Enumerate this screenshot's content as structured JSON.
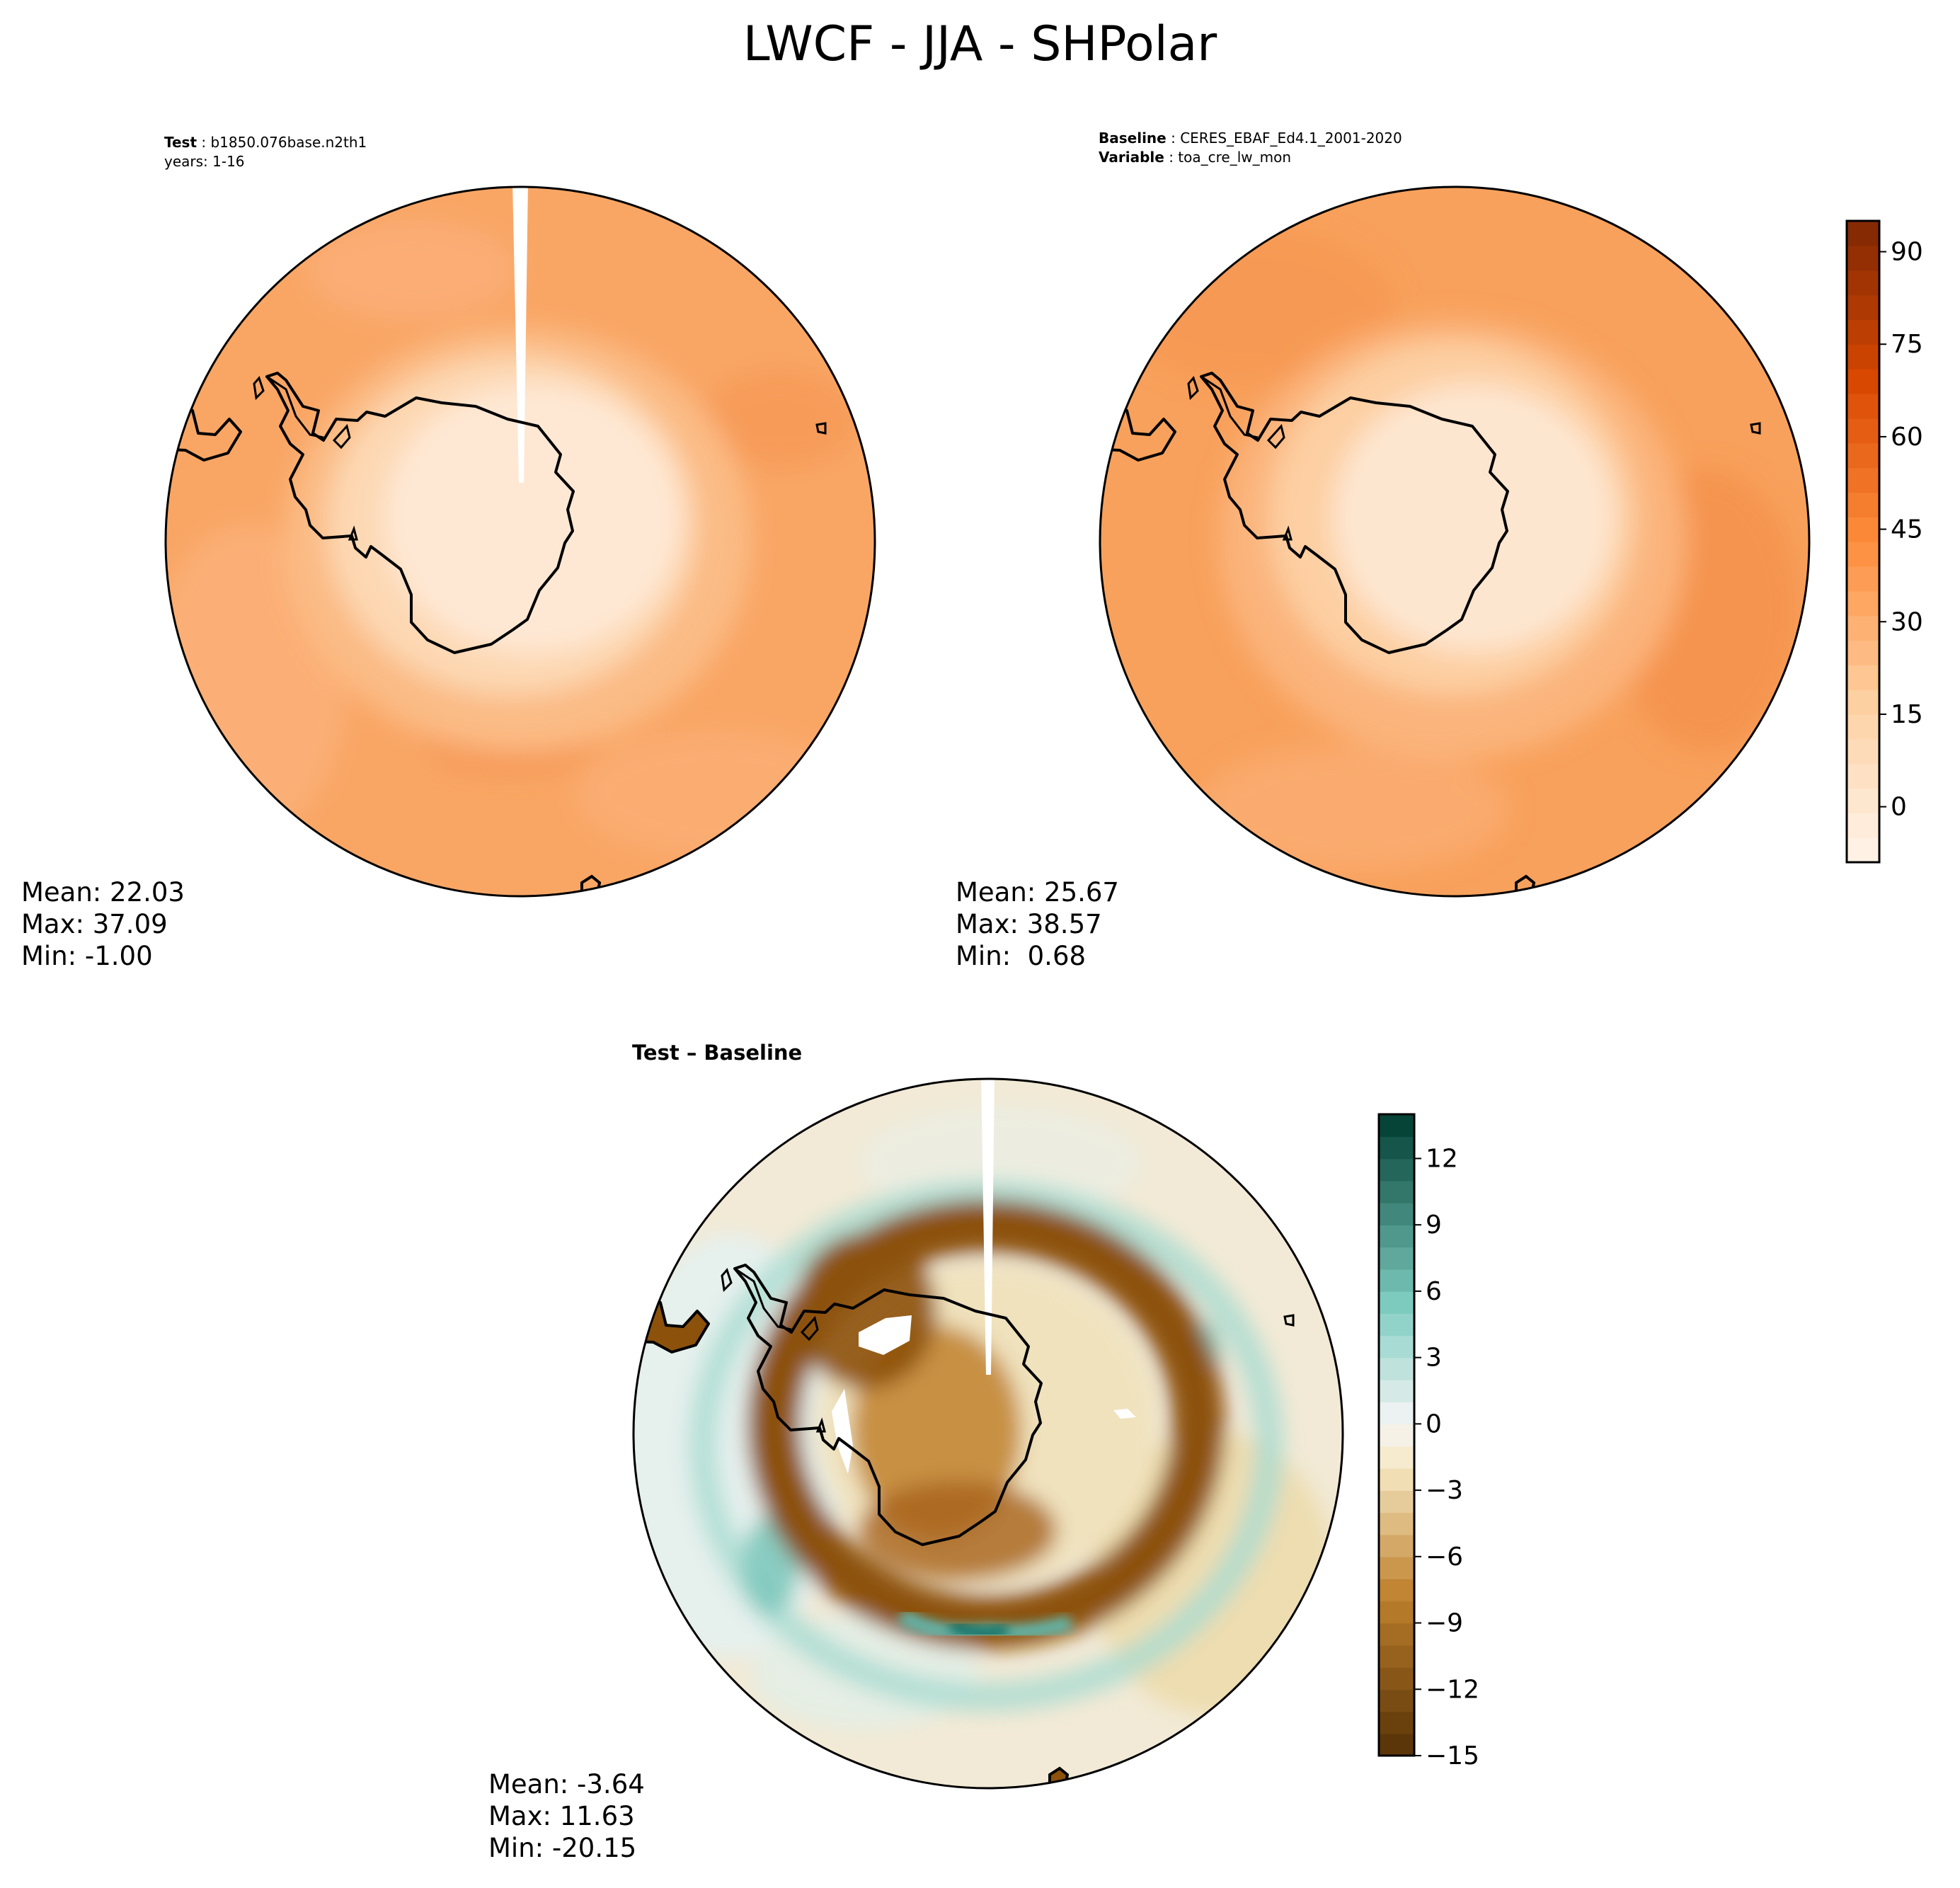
{
  "figure": {
    "title": "LWCF - JJA - SHPolar"
  },
  "panels": [
    {
      "id": "test",
      "header": [
        {
          "key": "Test",
          "value": "b1850.076base.n2th1"
        },
        {
          "key": "",
          "value": "years: 1-16"
        }
      ],
      "stats": {
        "mean": "Mean: 22.03",
        "max": "Max: 37.09",
        "min": "Min: -1.00"
      },
      "colormap": "Oranges",
      "colors": {
        "ocean": "#f9a665",
        "ring": "#fbbb85",
        "inland": "#fdd8b3",
        "interior": "#fee8d4"
      }
    },
    {
      "id": "baseline",
      "header": [
        {
          "key": "Baseline",
          "value": "CERES_EBAF_Ed4.1_2001-2020"
        },
        {
          "key": "Variable",
          "value": "toa_cre_lw_mon"
        }
      ],
      "stats": {
        "mean": "Mean: 25.67",
        "max": "Max: 38.57",
        "min": "Min:  0.68"
      },
      "colormap": "Oranges",
      "colors": {
        "ocean": "#f8a15c",
        "ring": "#fbb47b",
        "inland": "#fdcfa2",
        "interior": "#fde6d0"
      }
    },
    {
      "id": "diff",
      "title": "Test – Baseline",
      "stats": {
        "mean": "Mean: -3.64",
        "max": "Max: 11.63",
        "min": "Min: -20.15"
      },
      "colormap": "BrBG",
      "colors": {
        "ocean": "#f2ead6",
        "teal_band": "#5fb8ad",
        "brown_ring": "#8c510a",
        "interior": "#f0e2bd"
      }
    }
  ],
  "colorbars": [
    {
      "id": "abs",
      "ticks": [
        "90",
        "75",
        "60",
        "45",
        "30",
        "15",
        "0"
      ],
      "range": [
        -9,
        95
      ]
    },
    {
      "id": "diff",
      "ticks": [
        "12",
        "9",
        "6",
        "3",
        "0",
        "−3",
        "−6",
        "−9",
        "−12",
        "−15"
      ],
      "range": [
        -15,
        14
      ]
    }
  ]
}
